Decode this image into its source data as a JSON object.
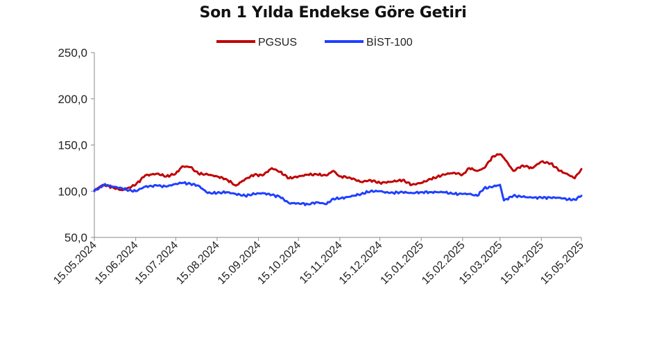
{
  "chart_data": {
    "type": "line",
    "title": "Son 1 Yılda Endekse Göre Getiri",
    "xlabel": "",
    "ylabel": "",
    "ylim": [
      50,
      250
    ],
    "yticks": [
      "50,0",
      "100,0",
      "150,0",
      "200,0",
      "250,0"
    ],
    "ytick_values": [
      50,
      100,
      150,
      200,
      250
    ],
    "xticks": [
      "15.05.2024",
      "15.06.2024",
      "15.07.2024",
      "15.08.2024",
      "15.09.2024",
      "15.10.2024",
      "15.11.2024",
      "15.12.2024",
      "15.01.2025",
      "15.02.2025",
      "15.03.2025",
      "15.04.2025",
      "15.05.2025"
    ],
    "legend": "top",
    "grid": false,
    "series": [
      {
        "name": "PGSUS",
        "color": "#c00000",
        "x": [
          "15.05.2024",
          "22.05.2024",
          "29.05.2024",
          "05.06.2024",
          "10.06.2024",
          "15.06.2024",
          "22.06.2024",
          "01.07.2024",
          "08.07.2024",
          "15.07.2024",
          "20.07.2024",
          "26.07.2024",
          "01.08.2024",
          "08.08.2024",
          "15.08.2024",
          "22.08.2024",
          "29.08.2024",
          "05.09.2024",
          "12.09.2024",
          "18.09.2024",
          "25.09.2024",
          "01.10.2024",
          "08.10.2024",
          "15.10.2024",
          "22.10.2024",
          "29.10.2024",
          "05.11.2024",
          "10.11.2024",
          "15.11.2024",
          "22.11.2024",
          "01.12.2024",
          "08.12.2024",
          "15.12.2024",
          "22.12.2024",
          "01.01.2025",
          "08.01.2025",
          "15.01.2025",
          "22.01.2025",
          "01.02.2025",
          "08.02.2025",
          "15.02.2025",
          "20.02.2025",
          "26.02.2025",
          "03.03.2025",
          "10.03.2025",
          "15.03.2025",
          "18.03.2025",
          "25.03.2025",
          "01.04.2025",
          "08.04.2025",
          "15.04.2025",
          "22.04.2025",
          "29.04.2025",
          "05.05.2025",
          "10.05.2025",
          "15.05.2025"
        ],
        "values": [
          101,
          107,
          104,
          101,
          104,
          107,
          117,
          119,
          116,
          119,
          127,
          126,
          119,
          118,
          116,
          113,
          106,
          113,
          118,
          117,
          125,
          121,
          114,
          116,
          118,
          118,
          117,
          122,
          116,
          115,
          110,
          112,
          109,
          110,
          112,
          107,
          109,
          113,
          118,
          120,
          118,
          125,
          122,
          125,
          138,
          140,
          136,
          122,
          128,
          125,
          132,
          130,
          122,
          118,
          114,
          124
        ]
      },
      {
        "name": "BİST-100",
        "color": "#1f3fff",
        "x": [
          "15.05.2024",
          "22.05.2024",
          "29.05.2024",
          "05.06.2024",
          "10.06.2024",
          "15.06.2024",
          "22.06.2024",
          "01.07.2024",
          "08.07.2024",
          "15.07.2024",
          "20.07.2024",
          "26.07.2024",
          "01.08.2024",
          "08.08.2024",
          "15.08.2024",
          "22.08.2024",
          "29.08.2024",
          "05.09.2024",
          "12.09.2024",
          "18.09.2024",
          "25.09.2024",
          "01.10.2024",
          "08.10.2024",
          "15.10.2024",
          "22.10.2024",
          "29.10.2024",
          "05.11.2024",
          "10.11.2024",
          "15.11.2024",
          "22.11.2024",
          "01.12.2024",
          "08.12.2024",
          "15.12.2024",
          "22.12.2024",
          "01.01.2025",
          "08.01.2025",
          "15.01.2025",
          "22.01.2025",
          "01.02.2025",
          "08.02.2025",
          "15.02.2025",
          "20.02.2025",
          "26.02.2025",
          "03.03.2025",
          "10.03.2025",
          "15.03.2025",
          "18.03.2025",
          "25.03.2025",
          "01.04.2025",
          "08.04.2025",
          "15.04.2025",
          "22.04.2025",
          "29.04.2025",
          "05.05.2025",
          "10.05.2025",
          "15.05.2025"
        ],
        "values": [
          100,
          107,
          105,
          103,
          101,
          100,
          105,
          106,
          105,
          108,
          109,
          108,
          106,
          98,
          98,
          99,
          97,
          95,
          97,
          98,
          96,
          94,
          87,
          87,
          86,
          88,
          86,
          92,
          92,
          94,
          97,
          100,
          100,
          98,
          99,
          98,
          99,
          99,
          99,
          97,
          97,
          97,
          95,
          103,
          105,
          107,
          90,
          95,
          94,
          93,
          93,
          93,
          93,
          91,
          91,
          95
        ]
      }
    ]
  }
}
